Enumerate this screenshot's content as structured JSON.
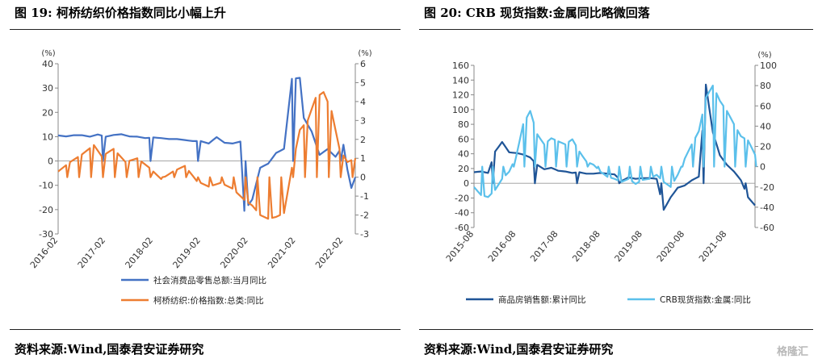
{
  "left": {
    "title": "图 19:  柯桥纺织价格指数同比小幅上升",
    "source": "资料来源:Wind,国泰君安证券研究",
    "chart_data": {
      "type": "line",
      "unit_left": "(%)",
      "unit_right": "(%)",
      "y_left_ticks": [
        "40",
        "30",
        "20",
        "10",
        "0",
        "-10",
        "-20",
        "-30"
      ],
      "y_right_ticks": [
        "6",
        "5",
        "4",
        "3",
        "2",
        "1",
        "0",
        "-1",
        "-2",
        "-3"
      ],
      "ylim_left": [
        -30,
        40
      ],
      "ylim_right": [
        -3,
        6
      ],
      "x_ticks": [
        "2016-02",
        "2017-02",
        "2018-02",
        "2019-02",
        "2020-02",
        "2021-02",
        "2022-02"
      ],
      "legend_placement": "bottom-center",
      "series": [
        {
          "name": "社会消费品零售总额:当月同比",
          "axis": "left",
          "color": "#4472c4",
          "x": [
            "2016-02",
            "2016-04",
            "2016-06",
            "2016-08",
            "2016-10",
            "2016-12",
            "2017-02",
            "2017-04",
            "2017-06",
            "2017-08",
            "2017-10",
            "2017-12",
            "2018-02",
            "2018-04",
            "2018-06",
            "2018-08",
            "2018-10",
            "2018-12",
            "2019-02",
            "2019-04",
            "2019-06",
            "2019-08",
            "2019-10",
            "2019-12",
            "2020-01",
            "2020-03",
            "2020-05",
            "2020-07",
            "2020-09",
            "2020-11",
            "2021-01",
            "2021-03",
            "2021-04",
            "2021-06",
            "2021-08",
            "2021-10",
            "2021-12",
            "2022-02",
            "2022-03",
            "2022-04",
            "2022-05"
          ],
          "values": [
            10.5,
            10.1,
            10.6,
            10.6,
            10.0,
            10.9,
            10.0,
            10.7,
            11.0,
            10.1,
            10.0,
            9.4,
            9.7,
            9.4,
            9.0,
            9.0,
            8.6,
            8.2,
            8.2,
            7.2,
            9.8,
            7.5,
            7.2,
            8.0,
            -20.5,
            -15.8,
            -2.8,
            -1.1,
            3.3,
            5.0,
            33.8,
            34.2,
            17.7,
            12.1,
            2.5,
            4.9,
            1.7,
            6.7,
            -3.5,
            -11.1,
            -6.7
          ]
        },
        {
          "name": "柯桥纺织:价格指数:总类:同比",
          "axis": "right",
          "color": "#ed7d31",
          "x": [
            "2016-02",
            "2016-05",
            "2016-08",
            "2016-11",
            "2017-01",
            "2017-04",
            "2017-07",
            "2017-10",
            "2018-01",
            "2018-04",
            "2018-07",
            "2018-10",
            "2019-01",
            "2019-04",
            "2019-07",
            "2019-10",
            "2020-01",
            "2020-03",
            "2020-05",
            "2020-07",
            "2020-09",
            "2020-11",
            "2021-01",
            "2021-03",
            "2021-05",
            "2021-07",
            "2021-09",
            "2021-11",
            "2022-01",
            "2022-03",
            "2022-05"
          ],
          "values": [
            0.3,
            0.8,
            1.2,
            1.7,
            1.1,
            1.5,
            0.8,
            1.0,
            0.5,
            -0.1,
            0.3,
            0.6,
            -0.2,
            -0.5,
            -0.3,
            -0.6,
            -1.2,
            -1.5,
            -2.0,
            -2.2,
            -2.1,
            -1.9,
            0.5,
            2.5,
            3.0,
            4.2,
            4.5,
            3.5,
            1.5,
            0.8,
            1.0
          ]
        }
      ]
    }
  },
  "right": {
    "title": "图 20:  CRB 现货指数:金属同比略微回落",
    "source": "资料来源:Wind,国泰君安证券研究",
    "chart_data": {
      "type": "line",
      "unit_left": "",
      "unit_right": "(%)",
      "y_left_ticks": [
        "160",
        "140",
        "120",
        "100",
        "80",
        "60",
        "40",
        "20",
        "0",
        "-20",
        "-40",
        "-60"
      ],
      "y_right_ticks": [
        "100",
        "80",
        "60",
        "40",
        "20",
        "0",
        "-20",
        "-40",
        "-60"
      ],
      "ylim_left": [
        -60,
        160
      ],
      "ylim_right": [
        -60,
        100
      ],
      "x_ticks": [
        "2015-08",
        "2016-08",
        "2017-08",
        "2018-08",
        "2019-08",
        "2020-08",
        "2021-08"
      ],
      "legend_placement": "bottom-center",
      "series": [
        {
          "name": "商品房销售额:累计同比",
          "axis": "left",
          "color": "#1f5597",
          "x": [
            "2015-08",
            "2015-10",
            "2015-12",
            "2016-02",
            "2016-04",
            "2016-06",
            "2016-08",
            "2016-10",
            "2016-12",
            "2017-02",
            "2017-04",
            "2017-06",
            "2017-08",
            "2017-10",
            "2017-12",
            "2018-02",
            "2018-04",
            "2018-06",
            "2018-08",
            "2018-10",
            "2018-12",
            "2019-02",
            "2019-04",
            "2019-06",
            "2019-08",
            "2019-10",
            "2019-12",
            "2020-02",
            "2020-04",
            "2020-06",
            "2020-08",
            "2020-10",
            "2020-12",
            "2021-02",
            "2021-04",
            "2021-06",
            "2021-08",
            "2021-10",
            "2021-12",
            "2022-02",
            "2022-04"
          ],
          "values": [
            15,
            16,
            14,
            43,
            56,
            42,
            41,
            39,
            35,
            25,
            19,
            21,
            17,
            16,
            14,
            15,
            13,
            13,
            14,
            13,
            12,
            3,
            8,
            6,
            7,
            7,
            6,
            -36,
            -19,
            -6,
            -3,
            4,
            9,
            134,
            69,
            38,
            25,
            16,
            4,
            -19,
            -30
          ]
        },
        {
          "name": "CRB现货指数:金属:同比",
          "axis": "right",
          "color": "#5bc0eb",
          "x": [
            "2015-08",
            "2015-10",
            "2015-12",
            "2016-02",
            "2016-04",
            "2016-06",
            "2016-08",
            "2016-10",
            "2016-12",
            "2017-02",
            "2017-04",
            "2017-06",
            "2017-08",
            "2017-10",
            "2017-12",
            "2018-02",
            "2018-04",
            "2018-06",
            "2018-08",
            "2018-10",
            "2018-12",
            "2019-02",
            "2019-04",
            "2019-06",
            "2019-08",
            "2019-10",
            "2019-12",
            "2020-02",
            "2020-04",
            "2020-06",
            "2020-08",
            "2020-10",
            "2020-12",
            "2021-02",
            "2021-04",
            "2021-06",
            "2021-08",
            "2021-10",
            "2021-12",
            "2022-02",
            "2022-04"
          ],
          "values": [
            -20,
            -28,
            -30,
            -23,
            -12,
            -5,
            10,
            42,
            55,
            32,
            22,
            28,
            25,
            22,
            27,
            15,
            5,
            2,
            -5,
            -10,
            -12,
            -15,
            -12,
            -17,
            -13,
            -12,
            -8,
            -15,
            -20,
            -8,
            8,
            22,
            35,
            68,
            80,
            65,
            55,
            42,
            30,
            26,
            12
          ]
        }
      ]
    }
  },
  "watermark": "格隆汇"
}
